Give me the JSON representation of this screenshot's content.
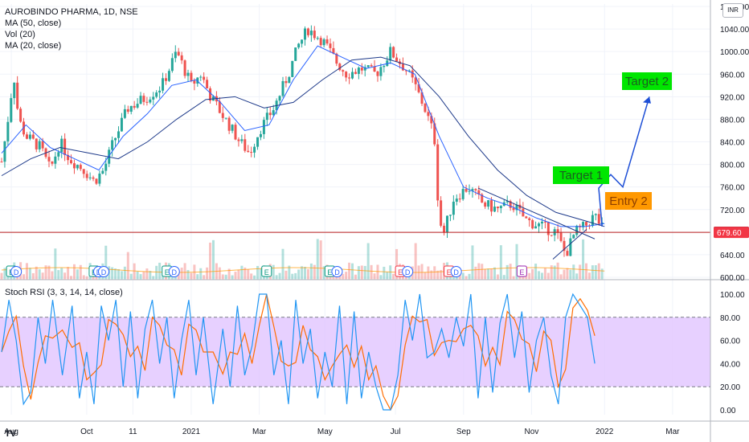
{
  "header": {
    "symbol_line": "AUROBINDO PHARMA, 1D, NSE",
    "ma50_label": "MA (50, close)",
    "vol_label": "Vol (20)",
    "ma20_label": "MA (20, close)",
    "currency_badge": "INR"
  },
  "rsi_label": "Stoch RSI (3, 3, 14, 14, close)",
  "logo_text": "TV",
  "chart_data": {
    "type": "candlestick",
    "price_axis": {
      "ticks": [
        "1080.00",
        "1040.00",
        "1000.00",
        "960.00",
        "920.00",
        "880.00",
        "840.00",
        "800.00",
        "760.00",
        "720.00",
        "680.00",
        "640.00",
        "600.00"
      ],
      "range": [
        600,
        1080
      ],
      "last_price": "679.80",
      "reference_price": "679.60"
    },
    "rsi_axis": {
      "ticks": [
        "100.00",
        "80.00",
        "60.00",
        "40.00",
        "20.00",
        "0.00"
      ],
      "range": [
        0,
        100
      ],
      "band": [
        20,
        80
      ]
    },
    "time_axis": {
      "ticks": [
        "Aug",
        "Oct",
        "11",
        "2021",
        "Mar",
        "May",
        "Jul",
        "Sep",
        "Nov",
        "2022",
        "Mar"
      ]
    },
    "price_series": [
      {
        "m": 0,
        "p": 805
      },
      {
        "m": 0.1,
        "p": 860
      },
      {
        "m": 0.25,
        "p": 960
      },
      {
        "m": 0.35,
        "p": 880
      },
      {
        "m": 0.5,
        "p": 850
      },
      {
        "m": 0.8,
        "p": 830
      },
      {
        "m": 1.0,
        "p": 790
      },
      {
        "m": 1.2,
        "p": 840
      },
      {
        "m": 1.4,
        "p": 810
      },
      {
        "m": 1.7,
        "p": 790
      },
      {
        "m": 1.9,
        "p": 770
      },
      {
        "m": 2.1,
        "p": 790
      },
      {
        "m": 2.3,
        "p": 840
      },
      {
        "m": 2.6,
        "p": 900
      },
      {
        "m": 3.0,
        "p": 920
      },
      {
        "m": 3.3,
        "p": 940
      },
      {
        "m": 3.6,
        "p": 1000
      },
      {
        "m": 3.9,
        "p": 940
      },
      {
        "m": 4.1,
        "p": 960
      },
      {
        "m": 4.3,
        "p": 920
      },
      {
        "m": 4.6,
        "p": 880
      },
      {
        "m": 4.9,
        "p": 840
      },
      {
        "m": 5.1,
        "p": 820
      },
      {
        "m": 5.3,
        "p": 860
      },
      {
        "m": 5.6,
        "p": 900
      },
      {
        "m": 5.9,
        "p": 960
      },
      {
        "m": 6.1,
        "p": 1010
      },
      {
        "m": 6.3,
        "p": 1040
      },
      {
        "m": 6.6,
        "p": 1020
      },
      {
        "m": 6.9,
        "p": 980
      },
      {
        "m": 7.1,
        "p": 960
      },
      {
        "m": 7.4,
        "p": 970
      },
      {
        "m": 7.7,
        "p": 960
      },
      {
        "m": 8.0,
        "p": 1000
      },
      {
        "m": 8.3,
        "p": 970
      },
      {
        "m": 8.5,
        "p": 940
      },
      {
        "m": 8.7,
        "p": 900
      },
      {
        "m": 8.9,
        "p": 850
      },
      {
        "m": 9.0,
        "p": 700
      },
      {
        "m": 9.1,
        "p": 680
      },
      {
        "m": 9.3,
        "p": 740
      },
      {
        "m": 9.6,
        "p": 760
      },
      {
        "m": 9.9,
        "p": 730
      },
      {
        "m": 10.2,
        "p": 720
      },
      {
        "m": 10.5,
        "p": 730
      },
      {
        "m": 10.8,
        "p": 700
      },
      {
        "m": 11.1,
        "p": 690
      },
      {
        "m": 11.4,
        "p": 680
      },
      {
        "m": 11.6,
        "p": 640
      },
      {
        "m": 11.8,
        "p": 680
      },
      {
        "m": 12.0,
        "p": 690
      },
      {
        "m": 12.2,
        "p": 710
      },
      {
        "m": 12.4,
        "p": 680
      }
    ],
    "ma20_series": [
      {
        "m": 0,
        "p": 820
      },
      {
        "m": 0.5,
        "p": 870
      },
      {
        "m": 1.0,
        "p": 830
      },
      {
        "m": 1.5,
        "p": 810
      },
      {
        "m": 2.0,
        "p": 790
      },
      {
        "m": 2.5,
        "p": 850
      },
      {
        "m": 3.0,
        "p": 890
      },
      {
        "m": 3.5,
        "p": 940
      },
      {
        "m": 4.0,
        "p": 950
      },
      {
        "m": 4.5,
        "p": 910
      },
      {
        "m": 5.0,
        "p": 860
      },
      {
        "m": 5.5,
        "p": 870
      },
      {
        "m": 6.0,
        "p": 950
      },
      {
        "m": 6.5,
        "p": 1010
      },
      {
        "m": 7.0,
        "p": 990
      },
      {
        "m": 7.5,
        "p": 970
      },
      {
        "m": 8.0,
        "p": 980
      },
      {
        "m": 8.5,
        "p": 960
      },
      {
        "m": 9.0,
        "p": 850
      },
      {
        "m": 9.5,
        "p": 760
      },
      {
        "m": 10.0,
        "p": 740
      },
      {
        "m": 10.5,
        "p": 725
      },
      {
        "m": 11.0,
        "p": 705
      },
      {
        "m": 11.5,
        "p": 690
      },
      {
        "m": 12.0,
        "p": 690
      },
      {
        "m": 12.4,
        "p": 695
      }
    ],
    "ma50_series": [
      {
        "m": 0,
        "p": 780
      },
      {
        "m": 0.6,
        "p": 810
      },
      {
        "m": 1.2,
        "p": 830
      },
      {
        "m": 1.8,
        "p": 820
      },
      {
        "m": 2.4,
        "p": 810
      },
      {
        "m": 3.0,
        "p": 840
      },
      {
        "m": 3.6,
        "p": 880
      },
      {
        "m": 4.2,
        "p": 915
      },
      {
        "m": 4.8,
        "p": 920
      },
      {
        "m": 5.4,
        "p": 900
      },
      {
        "m": 6.0,
        "p": 910
      },
      {
        "m": 6.6,
        "p": 950
      },
      {
        "m": 7.2,
        "p": 985
      },
      {
        "m": 7.8,
        "p": 990
      },
      {
        "m": 8.4,
        "p": 975
      },
      {
        "m": 9.0,
        "p": 920
      },
      {
        "m": 9.6,
        "p": 850
      },
      {
        "m": 10.2,
        "p": 790
      },
      {
        "m": 10.8,
        "p": 745
      },
      {
        "m": 11.4,
        "p": 715
      },
      {
        "m": 12.0,
        "p": 700
      },
      {
        "m": 12.4,
        "p": 690
      }
    ],
    "stoch_k": [
      {
        "m": 0,
        "v": 50
      },
      {
        "m": 0.15,
        "v": 95
      },
      {
        "m": 0.3,
        "v": 60
      },
      {
        "m": 0.45,
        "v": 5
      },
      {
        "m": 0.6,
        "v": 15
      },
      {
        "m": 0.75,
        "v": 80
      },
      {
        "m": 0.9,
        "v": 40
      },
      {
        "m": 1.05,
        "v": 95
      },
      {
        "m": 1.25,
        "v": 30
      },
      {
        "m": 1.45,
        "v": 90
      },
      {
        "m": 1.6,
        "v": 10
      },
      {
        "m": 1.75,
        "v": 50
      },
      {
        "m": 1.9,
        "v": 5
      },
      {
        "m": 2.05,
        "v": 90
      },
      {
        "m": 2.2,
        "v": 60
      },
      {
        "m": 2.35,
        "v": 95
      },
      {
        "m": 2.5,
        "v": 20
      },
      {
        "m": 2.65,
        "v": 85
      },
      {
        "m": 2.8,
        "v": 10
      },
      {
        "m": 2.95,
        "v": 70
      },
      {
        "m": 3.1,
        "v": 95
      },
      {
        "m": 3.25,
        "v": 40
      },
      {
        "m": 3.4,
        "v": 80
      },
      {
        "m": 3.55,
        "v": 10
      },
      {
        "m": 3.7,
        "v": 60
      },
      {
        "m": 3.85,
        "v": 95
      },
      {
        "m": 4.0,
        "v": 30
      },
      {
        "m": 4.15,
        "v": 80
      },
      {
        "m": 4.35,
        "v": 5
      },
      {
        "m": 4.55,
        "v": 70
      },
      {
        "m": 4.7,
        "v": 20
      },
      {
        "m": 4.85,
        "v": 90
      },
      {
        "m": 5.0,
        "v": 30
      },
      {
        "m": 5.15,
        "v": 55
      },
      {
        "m": 5.3,
        "v": 100
      },
      {
        "m": 5.45,
        "v": 100
      },
      {
        "m": 5.6,
        "v": 30
      },
      {
        "m": 5.75,
        "v": 60
      },
      {
        "m": 5.9,
        "v": 5
      },
      {
        "m": 6.05,
        "v": 95
      },
      {
        "m": 6.2,
        "v": 40
      },
      {
        "m": 6.35,
        "v": 70
      },
      {
        "m": 6.5,
        "v": 10
      },
      {
        "m": 6.65,
        "v": 50
      },
      {
        "m": 6.8,
        "v": 20
      },
      {
        "m": 6.95,
        "v": 90
      },
      {
        "m": 7.1,
        "v": 5
      },
      {
        "m": 7.25,
        "v": 85
      },
      {
        "m": 7.4,
        "v": 10
      },
      {
        "m": 7.55,
        "v": 50
      },
      {
        "m": 7.7,
        "v": 20
      },
      {
        "m": 7.85,
        "v": 0
      },
      {
        "m": 8.0,
        "v": 0
      },
      {
        "m": 8.15,
        "v": 30
      },
      {
        "m": 8.3,
        "v": 95
      },
      {
        "m": 8.45,
        "v": 60
      },
      {
        "m": 8.6,
        "v": 100
      },
      {
        "m": 8.75,
        "v": 45
      },
      {
        "m": 8.9,
        "v": 50
      },
      {
        "m": 9.05,
        "v": 70
      },
      {
        "m": 9.2,
        "v": 45
      },
      {
        "m": 9.35,
        "v": 80
      },
      {
        "m": 9.5,
        "v": 55
      },
      {
        "m": 9.65,
        "v": 100
      },
      {
        "m": 9.8,
        "v": 10
      },
      {
        "m": 9.95,
        "v": 80
      },
      {
        "m": 10.1,
        "v": 15
      },
      {
        "m": 10.25,
        "v": 75
      },
      {
        "m": 10.4,
        "v": 100
      },
      {
        "m": 10.55,
        "v": 45
      },
      {
        "m": 10.7,
        "v": 85
      },
      {
        "m": 10.85,
        "v": 15
      },
      {
        "m": 11.0,
        "v": 60
      },
      {
        "m": 11.15,
        "v": 80
      },
      {
        "m": 11.3,
        "v": 30
      },
      {
        "m": 11.45,
        "v": 5
      },
      {
        "m": 11.6,
        "v": 80
      },
      {
        "m": 11.75,
        "v": 100
      },
      {
        "m": 11.9,
        "v": 90
      },
      {
        "m": 12.05,
        "v": 80
      },
      {
        "m": 12.2,
        "v": 40
      }
    ],
    "annotations": {
      "target1": "Target 1",
      "target2": "Target 2",
      "entry2": "Entry 2"
    },
    "event_markers": [
      {
        "m": 0.2,
        "label": "E"
      },
      {
        "m": 0.3,
        "label": "D"
      },
      {
        "m": 1.9,
        "label": "E"
      },
      {
        "m": 2.0,
        "label": "D"
      },
      {
        "m": 2.1,
        "label": "D"
      },
      {
        "m": 3.4,
        "label": "E"
      },
      {
        "m": 3.55,
        "label": "D"
      },
      {
        "m": 5.45,
        "label": "E"
      },
      {
        "m": 6.75,
        "label": "E"
      },
      {
        "m": 6.9,
        "label": "D"
      },
      {
        "m": 8.2,
        "label": "E"
      },
      {
        "m": 8.35,
        "label": "D"
      },
      {
        "m": 9.2,
        "label": "E"
      },
      {
        "m": 9.35,
        "label": "D"
      },
      {
        "m": 10.7,
        "label": "E"
      }
    ],
    "colors": {
      "up": "#26a69a",
      "down": "#ef5350",
      "ma": "#2962ff",
      "stoch_k": "#2196f3",
      "stoch_d": "#ff6d00",
      "band": "#e1c4ff",
      "target_bg": "#00e600",
      "entry_bg": "#ff9800",
      "projection": "#1e4fd6",
      "last_price_bg": "#131722",
      "ref_price_bg": "#f23645"
    }
  }
}
